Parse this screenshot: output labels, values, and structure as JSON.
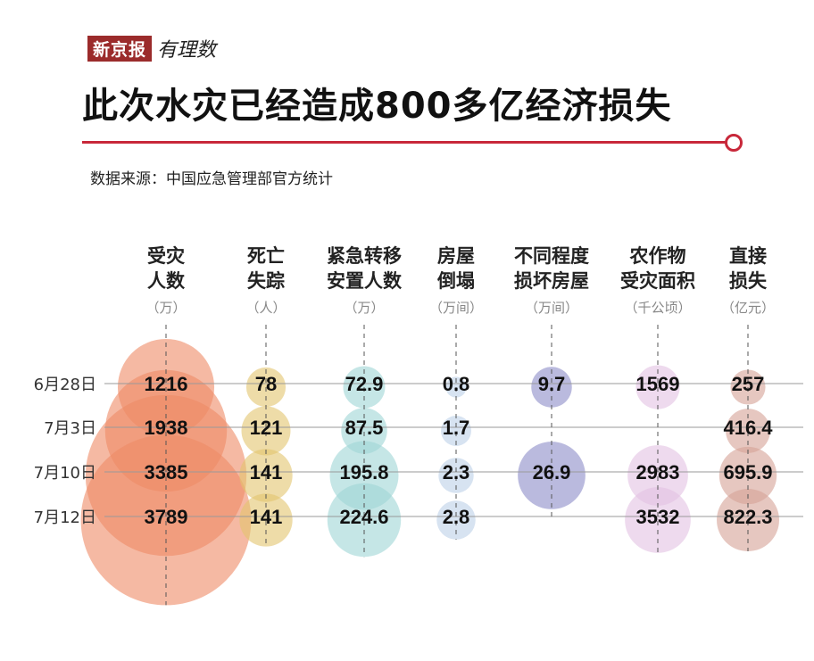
{
  "header": {
    "logo_brand": "新京报",
    "logo_sub": "有理数",
    "title": "此次水灾已经造成800多亿经济损失",
    "source": "数据来源：中国应急管理部官方统计",
    "accent_color": "#c8283a"
  },
  "chart_data": {
    "type": "bubble-table",
    "categories": [
      "6月28日",
      "7月3日",
      "7月10日",
      "7月12日"
    ],
    "series": [
      {
        "name_line1": "受灾",
        "name_line2": "人数",
        "unit": "（万）",
        "color": "#ef8a66",
        "values": [
          1216,
          1938,
          3385,
          3789
        ],
        "labels": [
          "1216",
          "1938",
          "3385",
          "3789"
        ]
      },
      {
        "name_line1": "死亡",
        "name_line2": "失踪",
        "unit": "（人）",
        "color": "#e3c46e",
        "values": [
          78,
          121,
          141,
          141
        ],
        "labels": [
          "78",
          "121",
          "141",
          "141"
        ]
      },
      {
        "name_line1": "紧急转移",
        "name_line2": "安置人数",
        "unit": "（万）",
        "color": "#9fd6d6",
        "values": [
          72.9,
          87.5,
          195.8,
          224.6
        ],
        "labels": [
          "72.9",
          "87.5",
          "195.8",
          "224.6"
        ]
      },
      {
        "name_line1": "房屋",
        "name_line2": "倒塌",
        "unit": "（万间）",
        "color": "#bcd1e8",
        "values": [
          0.8,
          1.7,
          2.3,
          2.8
        ],
        "labels": [
          "0.8",
          "1.7",
          "2.3",
          "2.8"
        ]
      },
      {
        "name_line1": "不同程度",
        "name_line2": "损坏房屋",
        "unit": "（万间）",
        "color": "#8c8cc8",
        "values": [
          9.7,
          null,
          26.9,
          null
        ],
        "labels": [
          "9.7",
          "",
          "26.9",
          ""
        ]
      },
      {
        "name_line1": "农作物",
        "name_line2": "受灾面积",
        "unit": "（千公顷）",
        "color": "#e2c2e2",
        "values": [
          1569,
          null,
          2983,
          3532
        ],
        "labels": [
          "1569",
          "",
          "2983",
          "3532"
        ]
      },
      {
        "name_line1": "直接",
        "name_line2": "损失",
        "unit": "（亿元）",
        "color": "#d6a296",
        "values": [
          257,
          416.4,
          695.9,
          822.3
        ],
        "labels": [
          "257",
          "416.4",
          "695.9",
          "822.3"
        ]
      }
    ]
  }
}
